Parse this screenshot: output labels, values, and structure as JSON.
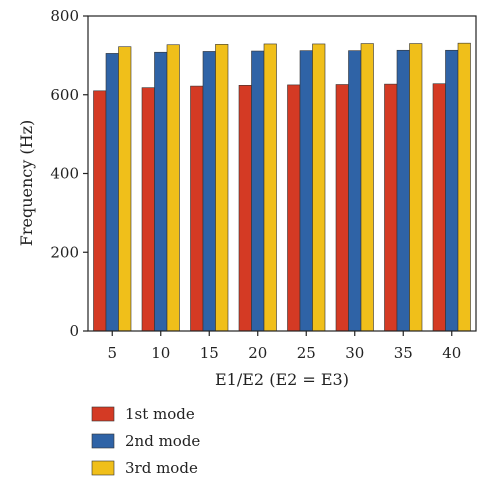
{
  "chart_data": {
    "type": "bar",
    "xlabel": "E1/E2 (E2 = E3)",
    "ylabel": "Frequency (Hz)",
    "categories": [
      "5",
      "10",
      "15",
      "20",
      "25",
      "30",
      "35",
      "40"
    ],
    "ylim": [
      0,
      800
    ],
    "yticks": [
      "0",
      "200",
      "400",
      "600",
      "800"
    ],
    "grid": false,
    "legend_position": "bottom",
    "series": [
      {
        "name": "1st mode",
        "color": "#d43a24",
        "values": [
          610,
          618,
          622,
          624,
          625,
          626,
          627,
          628
        ]
      },
      {
        "name": "2nd mode",
        "color": "#2f63a6",
        "values": [
          705,
          708,
          710,
          711,
          712,
          712,
          713,
          713
        ]
      },
      {
        "name": "3rd mode",
        "color": "#f0bf1a",
        "values": [
          722,
          727,
          728,
          729,
          729,
          730,
          730,
          731
        ]
      }
    ]
  }
}
